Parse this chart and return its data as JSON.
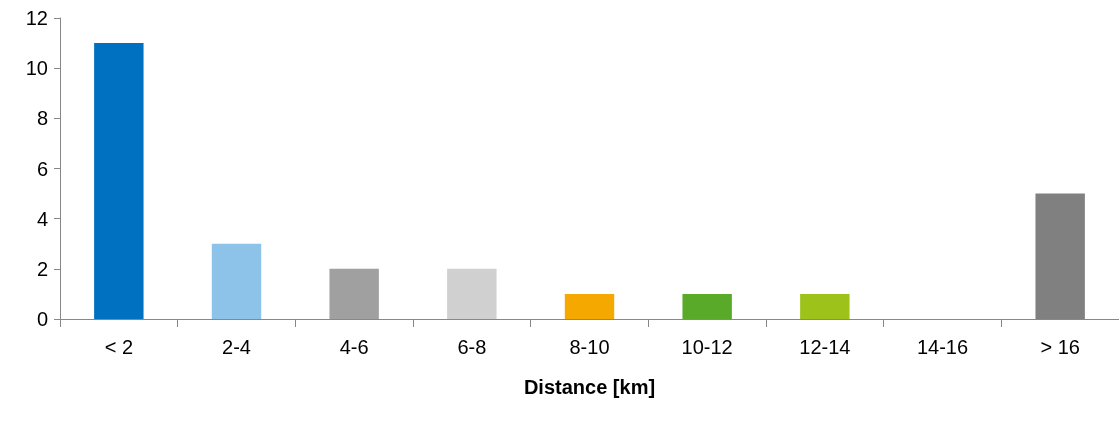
{
  "chart_data": {
    "type": "bar",
    "xlabel": "Distance [km]",
    "categories": [
      "< 2",
      "2-4",
      "4-6",
      "6-8",
      "8-10",
      "10-12",
      "12-14",
      "14-16",
      "> 16"
    ],
    "values": [
      11,
      3,
      2,
      2,
      1,
      1,
      1,
      0,
      5
    ],
    "colors": [
      "#0070c0",
      "#8dc3e8",
      "#a0a0a0",
      "#d0d0d0",
      "#f5a800",
      "#5aaa2a",
      "#9dc31a",
      "#808080",
      "#808080"
    ],
    "ylim": [
      0,
      12
    ],
    "yticks": [
      0,
      2,
      4,
      6,
      8,
      10,
      12
    ],
    "grid": false
  }
}
